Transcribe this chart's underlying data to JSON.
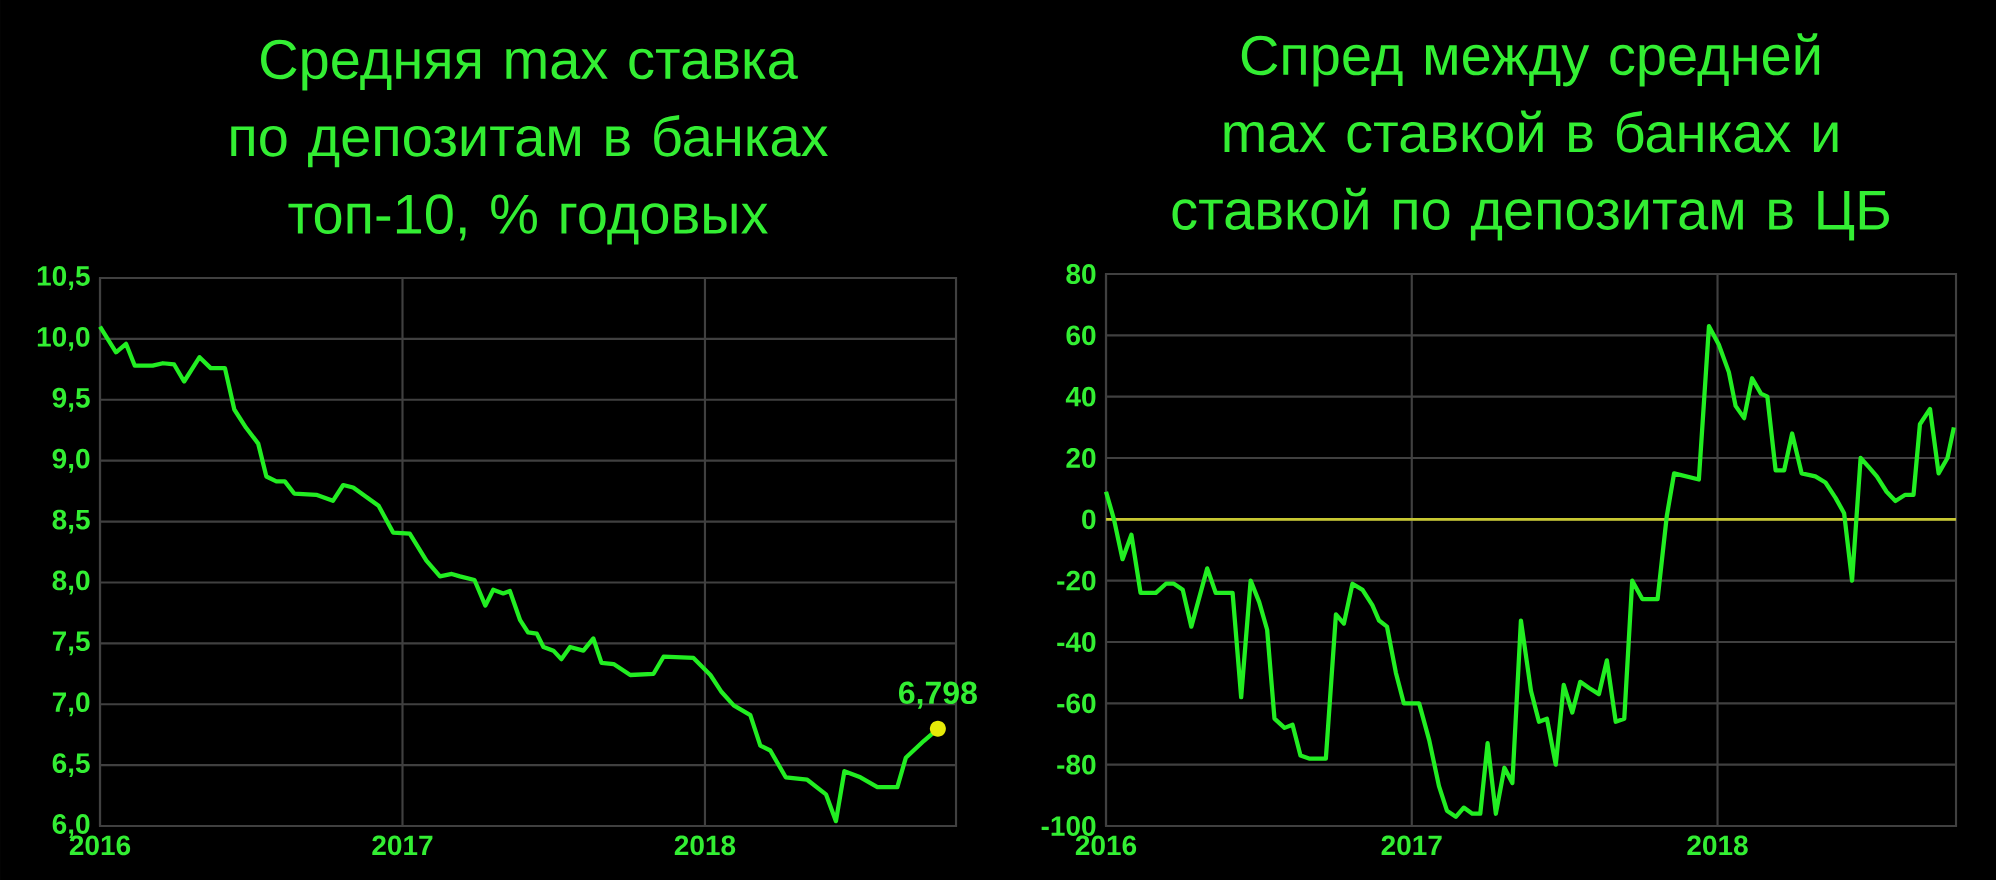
{
  "chart_data": [
    {
      "type": "line",
      "title": "Средняя max ставка по депозитам в банках топ-10, % годовых",
      "x": [
        2016.0,
        2016.053,
        2016.086,
        2016.115,
        2016.174,
        2016.208,
        2016.245,
        2016.278,
        2016.329,
        2016.366,
        2016.413,
        2016.444,
        2016.483,
        2016.523,
        2016.55,
        2016.583,
        2016.611,
        2016.642,
        2016.715,
        2016.77,
        2016.804,
        2016.837,
        2016.876,
        2016.921,
        2016.969,
        2017.024,
        2017.079,
        2017.124,
        2017.163,
        2017.19,
        2017.238,
        2017.274,
        2017.3,
        2017.333,
        2017.355,
        2017.389,
        2017.415,
        2017.444,
        2017.466,
        2017.499,
        2017.525,
        2017.554,
        2017.598,
        2017.631,
        2017.658,
        2017.698,
        2017.753,
        2017.83,
        2017.863,
        2017.962,
        2018.018,
        2018.055,
        2018.095,
        2018.15,
        2018.183,
        2018.216,
        2018.267,
        2018.338,
        2018.4,
        2018.433,
        2018.461,
        2018.514,
        2018.57,
        2018.636,
        2018.664,
        2018.724,
        2018.77
      ],
      "series": [
        {
          "color": "#22ee22",
          "values": [
            10.1,
            9.89,
            9.96,
            9.78,
            9.78,
            9.8,
            9.79,
            9.65,
            9.85,
            9.76,
            9.76,
            9.42,
            9.27,
            9.14,
            8.87,
            8.83,
            8.83,
            8.73,
            8.72,
            8.67,
            8.8,
            8.78,
            8.71,
            8.63,
            8.41,
            8.4,
            8.18,
            8.05,
            8.07,
            8.05,
            8.02,
            7.81,
            7.94,
            7.91,
            7.93,
            7.69,
            7.59,
            7.58,
            7.47,
            7.44,
            7.37,
            7.47,
            7.44,
            7.54,
            7.34,
            7.33,
            7.24,
            7.25,
            7.39,
            7.38,
            7.24,
            7.1,
            6.99,
            6.91,
            6.66,
            6.62,
            6.4,
            6.38,
            6.26,
            6.04,
            6.45,
            6.4,
            6.32,
            6.32,
            6.56,
            6.7,
            6.798
          ]
        }
      ],
      "xlim": [
        2016,
        2018.83
      ],
      "xticks": [
        2016,
        2017,
        2018
      ],
      "ylim": [
        6.0,
        10.5
      ],
      "yticks": [
        {
          "value": 6.0,
          "label": "6,0"
        },
        {
          "value": 6.5,
          "label": "6,5"
        },
        {
          "value": 7.0,
          "label": "7,0"
        },
        {
          "value": 7.5,
          "label": "7,5"
        },
        {
          "value": 8.0,
          "label": "8,0"
        },
        {
          "value": 8.5,
          "label": "8,5"
        },
        {
          "value": 9.0,
          "label": "9,0"
        },
        {
          "value": 9.5,
          "label": "9,5"
        },
        {
          "value": 10.0,
          "label": "10,0"
        },
        {
          "value": 10.5,
          "label": "10,5"
        }
      ],
      "grid": true,
      "annotations": [
        {
          "text": "6,798",
          "x": 2018.77,
          "y": 6.798
        }
      ]
    },
    {
      "type": "line",
      "title": "Спред между средней max ставкой в банках и ставкой по депозитам в ЦБ",
      "x": [
        2016.0,
        2016.026,
        2016.054,
        2016.083,
        2016.113,
        2016.163,
        2016.196,
        2016.222,
        2016.251,
        2016.279,
        2016.331,
        2016.359,
        2016.414,
        2016.442,
        2016.473,
        2016.501,
        2016.527,
        2016.551,
        2016.584,
        2016.61,
        2016.636,
        2016.664,
        2016.719,
        2016.752,
        2016.778,
        2016.806,
        2016.839,
        2016.871,
        2016.893,
        2016.919,
        2016.948,
        2016.974,
        2017.024,
        2017.057,
        2017.089,
        2017.115,
        2017.144,
        2017.17,
        2017.198,
        2017.224,
        2017.248,
        2017.275,
        2017.303,
        2017.329,
        2017.357,
        2017.39,
        2017.416,
        2017.442,
        2017.471,
        2017.497,
        2017.525,
        2017.551,
        2017.58,
        2017.612,
        2017.638,
        2017.667,
        2017.695,
        2017.721,
        2017.754,
        2017.804,
        2017.834,
        2017.858,
        2017.939,
        2017.972,
        2018.004,
        2018.037,
        2018.059,
        2018.087,
        2018.113,
        2018.142,
        2018.163,
        2018.19,
        2018.218,
        2018.244,
        2018.275,
        2018.32,
        2018.353,
        2018.386,
        2018.414,
        2018.44,
        2018.468,
        2018.495,
        2018.521,
        2018.553,
        2018.582,
        2018.614,
        2018.641,
        2018.662,
        2018.695,
        2018.723,
        2018.752,
        2018.773
      ],
      "series": [
        {
          "color": "#22ee22",
          "values": [
            9,
            0,
            -13,
            -5,
            -24,
            -24,
            -21,
            -21,
            -23,
            -35,
            -16,
            -24,
            -24,
            -58,
            -20,
            -27,
            -36,
            -65,
            -68,
            -67,
            -77,
            -78,
            -78,
            -31,
            -34,
            -21,
            -23,
            -28,
            -33,
            -35,
            -50,
            -60,
            -60,
            -72,
            -87,
            -95,
            -97,
            -94,
            -96,
            -96,
            -73,
            -96,
            -81,
            -86,
            -33,
            -56,
            -66,
            -65,
            -80,
            -54,
            -63,
            -53,
            -55,
            -57,
            -46,
            -66,
            -65,
            -20,
            -26,
            -26,
            1,
            15,
            13,
            63,
            57,
            48,
            37,
            33,
            46,
            41,
            40,
            16,
            16,
            28,
            15,
            14,
            12,
            7,
            2,
            -20,
            20,
            17,
            14,
            9,
            6,
            8,
            8,
            31,
            36,
            15,
            20,
            30
          ]
        }
      ],
      "xlim": [
        2016,
        2018.78
      ],
      "xticks": [
        2016,
        2017,
        2018
      ],
      "ylim": [
        -100,
        80
      ],
      "yticks": [
        -100,
        -80,
        -60,
        -40,
        -20,
        0,
        20,
        40,
        60,
        80
      ],
      "grid": true,
      "ref_lines": [
        {
          "axis": "y",
          "value": 0,
          "color": "#c8c832"
        }
      ]
    }
  ]
}
